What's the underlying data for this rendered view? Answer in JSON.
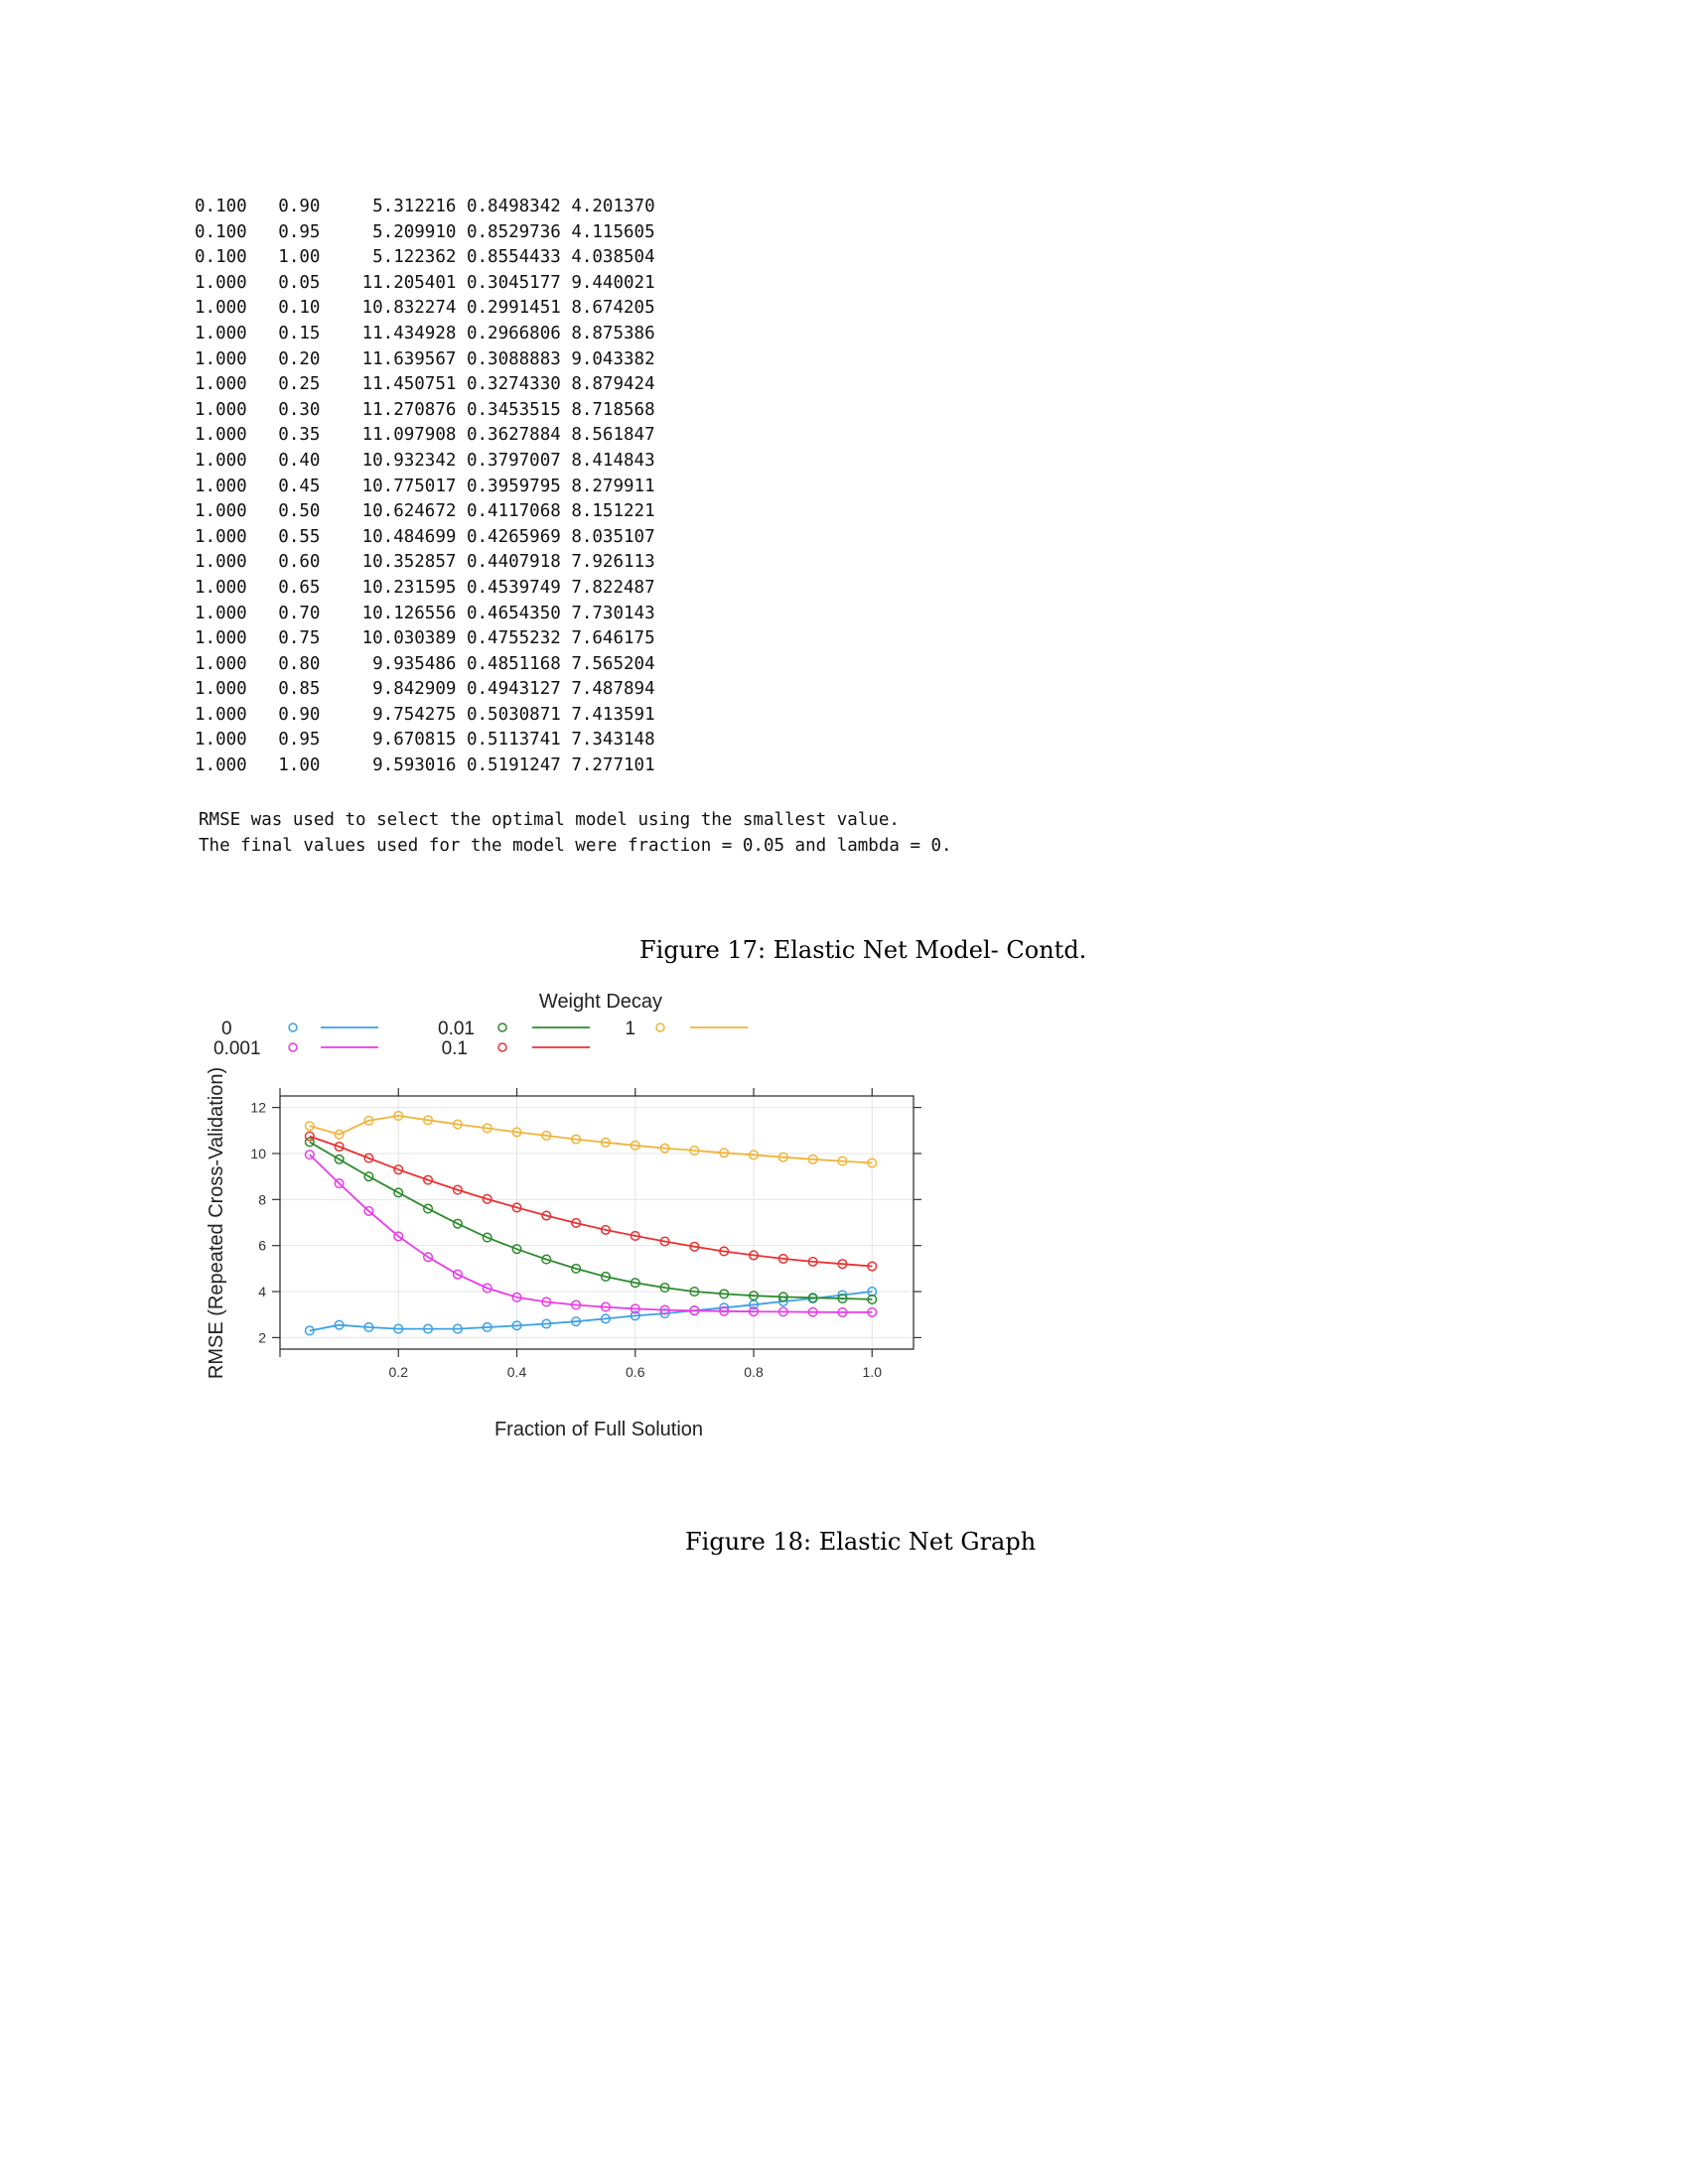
{
  "table": {
    "rows": [
      [
        "0.100",
        "0.90",
        "5.312216",
        "0.8498342",
        "4.201370"
      ],
      [
        "0.100",
        "0.95",
        "5.209910",
        "0.8529736",
        "4.115605"
      ],
      [
        "0.100",
        "1.00",
        "5.122362",
        "0.8554433",
        "4.038504"
      ],
      [
        "1.000",
        "0.05",
        "11.205401",
        "0.3045177",
        "9.440021"
      ],
      [
        "1.000",
        "0.10",
        "10.832274",
        "0.2991451",
        "8.674205"
      ],
      [
        "1.000",
        "0.15",
        "11.434928",
        "0.2966806",
        "8.875386"
      ],
      [
        "1.000",
        "0.20",
        "11.639567",
        "0.3088883",
        "9.043382"
      ],
      [
        "1.000",
        "0.25",
        "11.450751",
        "0.3274330",
        "8.879424"
      ],
      [
        "1.000",
        "0.30",
        "11.270876",
        "0.3453515",
        "8.718568"
      ],
      [
        "1.000",
        "0.35",
        "11.097908",
        "0.3627884",
        "8.561847"
      ],
      [
        "1.000",
        "0.40",
        "10.932342",
        "0.3797007",
        "8.414843"
      ],
      [
        "1.000",
        "0.45",
        "10.775017",
        "0.3959795",
        "8.279911"
      ],
      [
        "1.000",
        "0.50",
        "10.624672",
        "0.4117068",
        "8.151221"
      ],
      [
        "1.000",
        "0.55",
        "10.484699",
        "0.4265969",
        "8.035107"
      ],
      [
        "1.000",
        "0.60",
        "10.352857",
        "0.4407918",
        "7.926113"
      ],
      [
        "1.000",
        "0.65",
        "10.231595",
        "0.4539749",
        "7.822487"
      ],
      [
        "1.000",
        "0.70",
        "10.126556",
        "0.4654350",
        "7.730143"
      ],
      [
        "1.000",
        "0.75",
        "10.030389",
        "0.4755232",
        "7.646175"
      ],
      [
        "1.000",
        "0.80",
        "9.935486",
        "0.4851168",
        "7.565204"
      ],
      [
        "1.000",
        "0.85",
        "9.842909",
        "0.4943127",
        "7.487894"
      ],
      [
        "1.000",
        "0.90",
        "9.754275",
        "0.5030871",
        "7.413591"
      ],
      [
        "1.000",
        "0.95",
        "9.670815",
        "0.5113741",
        "7.343148"
      ],
      [
        "1.000",
        "1.00",
        "9.593016",
        "0.5191247",
        "7.277101"
      ]
    ],
    "note_lines": [
      "RMSE was used to select the optimal model using the smallest value.",
      "The final values used for the model were fraction = 0.05 and lambda = 0."
    ]
  },
  "captions": {
    "fig17": "Figure 17: Elastic Net Model- Contd.",
    "fig18": "Figure 18: Elastic Net Graph"
  },
  "chart_data": {
    "type": "line",
    "title": "",
    "xlabel": "Fraction of Full Solution",
    "ylabel": "RMSE (Repeated Cross-Validation)",
    "legend_title": "Weight Decay",
    "legend_position": "top",
    "xlim": [
      0,
      1.07
    ],
    "ylim": [
      1.5,
      12.5
    ],
    "x_ticks": [
      0.2,
      0.4,
      0.6,
      0.8,
      1.0
    ],
    "x_tick_labels": [
      "0.2",
      "0.4",
      "0.6",
      "0.8",
      "1.0"
    ],
    "y_ticks": [
      2,
      4,
      6,
      8,
      10,
      12
    ],
    "y_tick_labels": [
      "2",
      "4",
      "6",
      "8",
      "10",
      "12"
    ],
    "grid": true,
    "x": [
      0.05,
      0.1,
      0.15,
      0.2,
      0.25,
      0.3,
      0.35,
      0.4,
      0.45,
      0.5,
      0.55,
      0.6,
      0.65,
      0.7,
      0.75,
      0.8,
      0.85,
      0.9,
      0.95,
      1.0
    ],
    "series": [
      {
        "name": "0",
        "color": "#3ca0e6",
        "values": [
          2.3,
          2.55,
          2.45,
          2.38,
          2.38,
          2.38,
          2.45,
          2.52,
          2.6,
          2.7,
          2.82,
          2.95,
          3.05,
          3.18,
          3.3,
          3.43,
          3.57,
          3.7,
          3.85,
          4.0
        ]
      },
      {
        "name": "0.001",
        "color": "#e83ce8",
        "values": [
          9.95,
          8.7,
          7.5,
          6.4,
          5.5,
          4.75,
          4.15,
          3.75,
          3.55,
          3.42,
          3.33,
          3.25,
          3.2,
          3.17,
          3.15,
          3.13,
          3.12,
          3.11,
          3.1,
          3.1
        ]
      },
      {
        "name": "0.01",
        "color": "#2e8b2e",
        "values": [
          10.5,
          9.75,
          9.0,
          8.3,
          7.6,
          6.95,
          6.35,
          5.85,
          5.4,
          5.0,
          4.65,
          4.38,
          4.17,
          4.0,
          3.9,
          3.82,
          3.77,
          3.73,
          3.7,
          3.66
        ]
      },
      {
        "name": "0.1",
        "color": "#e83232",
        "values": [
          10.75,
          10.3,
          9.8,
          9.3,
          8.85,
          8.42,
          8.02,
          7.65,
          7.3,
          6.98,
          6.68,
          6.42,
          6.18,
          5.95,
          5.75,
          5.58,
          5.43,
          5.3,
          5.2,
          5.1
        ]
      },
      {
        "name": "1",
        "color": "#f0b43c",
        "values": [
          11.2,
          10.83,
          11.43,
          11.64,
          11.45,
          11.27,
          11.1,
          10.93,
          10.78,
          10.62,
          10.48,
          10.35,
          10.23,
          10.13,
          10.03,
          9.94,
          9.84,
          9.75,
          9.67,
          9.59
        ]
      }
    ]
  }
}
